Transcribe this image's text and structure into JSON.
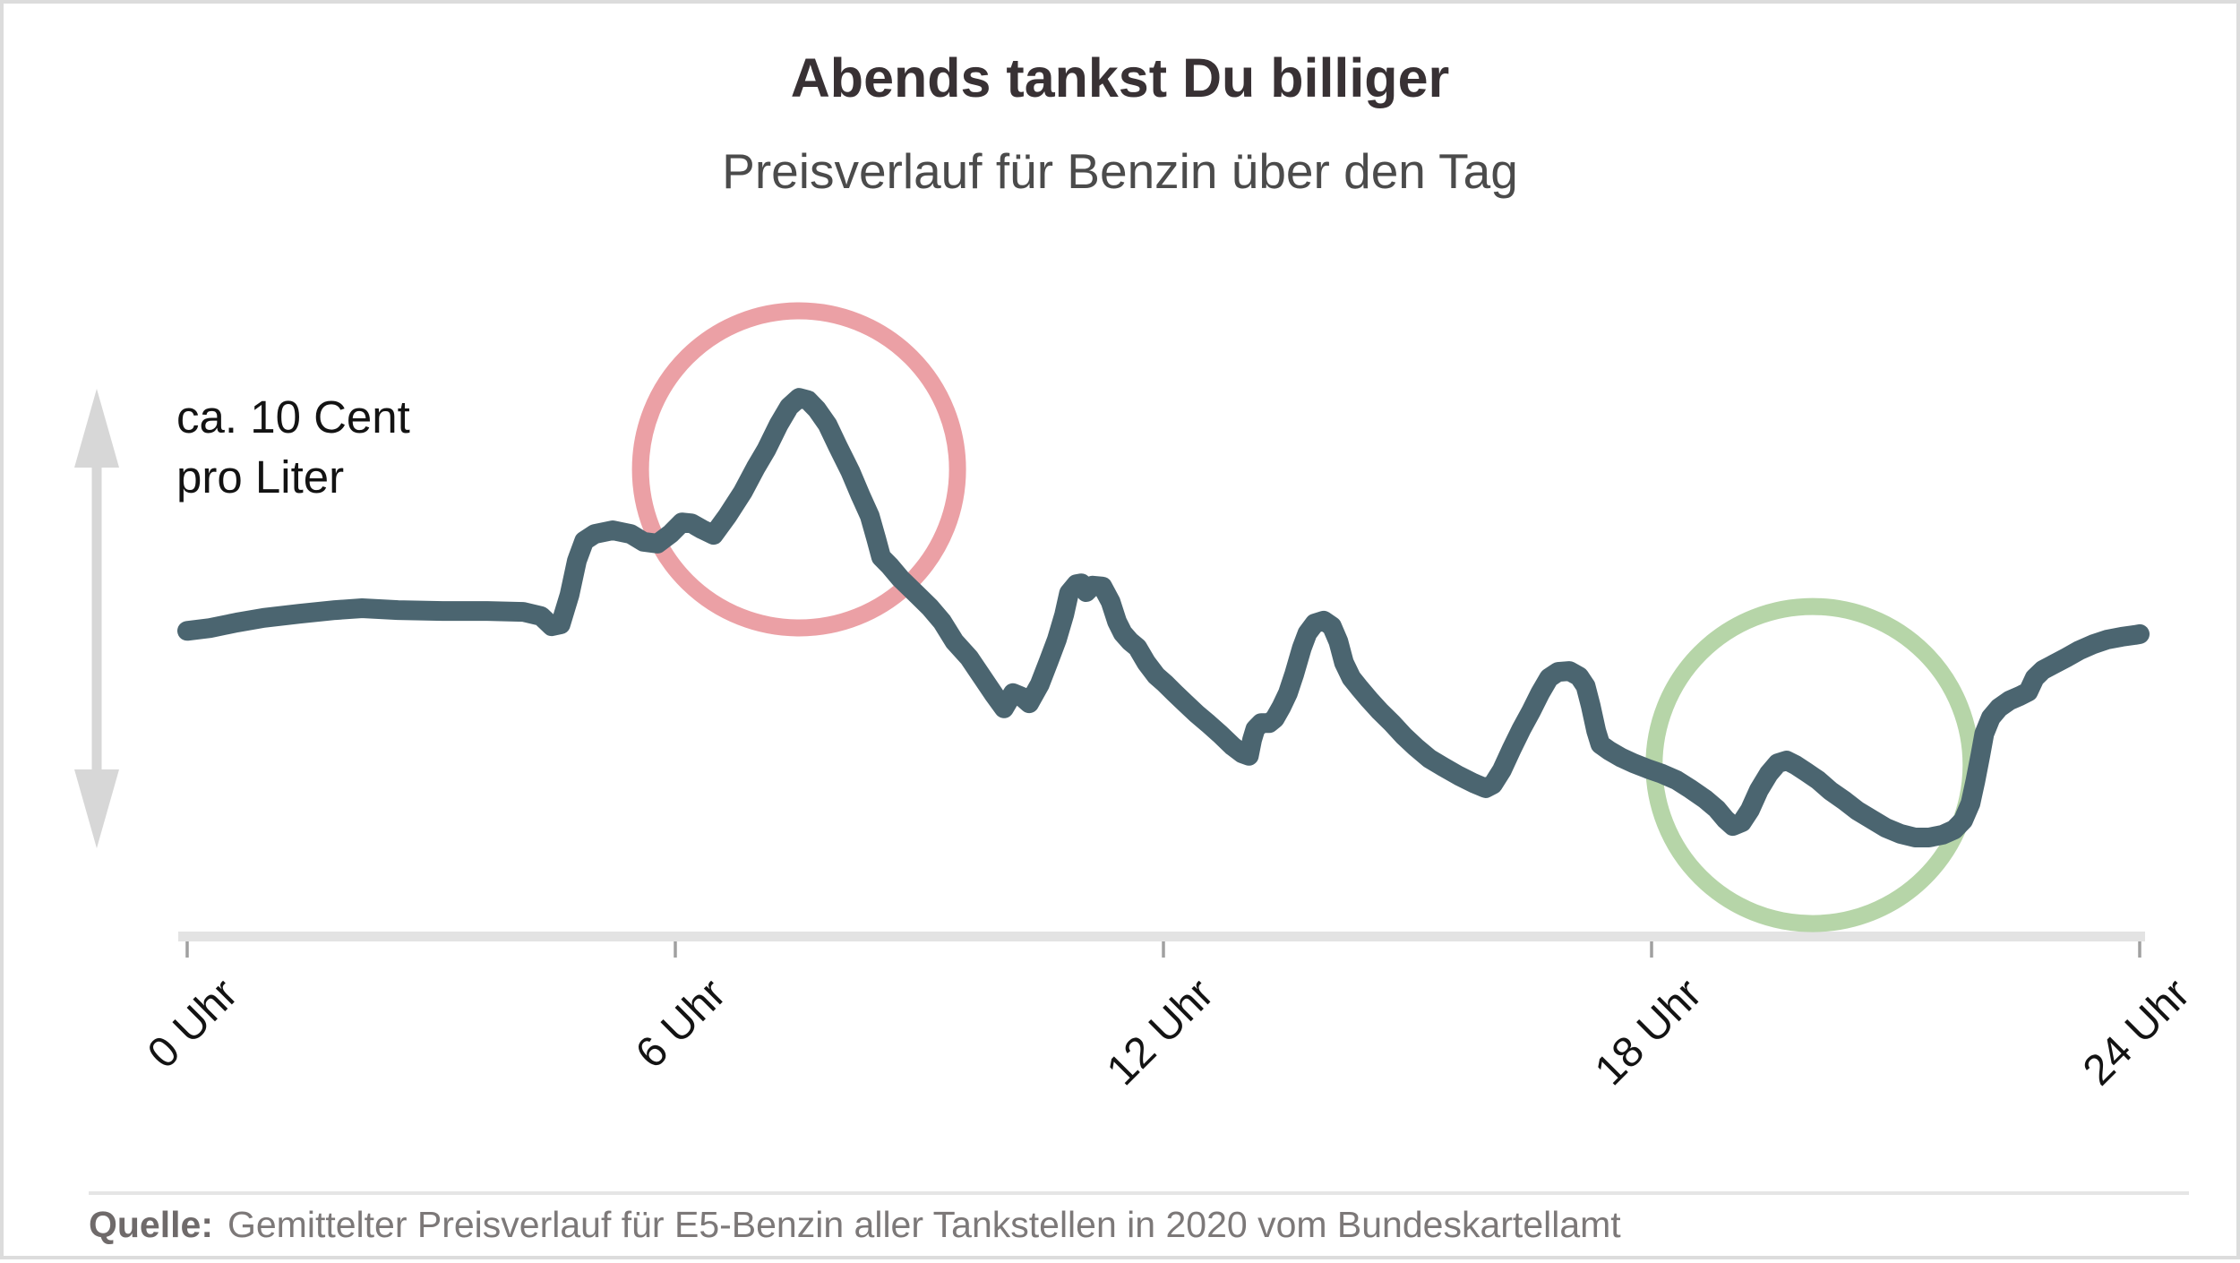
{
  "header": {
    "title": "Abends tankst Du billiger",
    "subtitle": "Preisverlauf für Benzin über den Tag"
  },
  "annotation": {
    "line1": "ca. 10 Cent",
    "line2": "pro Liter"
  },
  "source": {
    "label": "Quelle:",
    "text": "Gemittelter Preisverlauf für E5-Benzin aller Tankstellen in 2020 vom Bundeskartellamt"
  },
  "colors": {
    "line": "#4b6570",
    "circle-red": "#eba0a5",
    "circle-green": "#b6d5a8",
    "arrow": "#d7d7d7",
    "axis-bar": "#e3e3e3",
    "axis-tick": "#a0a0a0",
    "title": "#383134",
    "subtitle": "#4b4b4b",
    "source": "#7c7878"
  },
  "chart_data": {
    "type": "line",
    "title": "Abends tankst Du billiger",
    "subtitle": "Preisverlauf für Benzin über den Tag",
    "xlabel": "",
    "ylabel": "",
    "grid": false,
    "legend": "none",
    "x_unit": "hour_of_day",
    "y_unit": "cents_per_liter_above_daily_low",
    "x_range_hours": [
      0,
      24
    ],
    "y_range_cents": [
      0,
      10
    ],
    "scale_note": "ca. 10 Cent pro Liter",
    "ticks": [
      {
        "label": "0 Uhr",
        "hour": 0
      },
      {
        "label": "6 Uhr",
        "hour": 6
      },
      {
        "label": "12 Uhr",
        "hour": 12
      },
      {
        "label": "18 Uhr",
        "hour": 18
      },
      {
        "label": "24 Uhr",
        "hour": 24
      }
    ],
    "series_name": "Gemittelter E5-Benzinpreis 2020",
    "series": [
      [
        0,
        4.5
      ],
      [
        0.28,
        4.56
      ],
      [
        0.61,
        4.68
      ],
      [
        0.94,
        4.78
      ],
      [
        1.38,
        4.87
      ],
      [
        1.82,
        4.95
      ],
      [
        2.15,
        4.99
      ],
      [
        2.59,
        4.95
      ],
      [
        3.14,
        4.93
      ],
      [
        3.69,
        4.93
      ],
      [
        4.13,
        4.91
      ],
      [
        4.35,
        4.82
      ],
      [
        4.48,
        4.6
      ],
      [
        4.59,
        4.64
      ],
      [
        4.7,
        5.28
      ],
      [
        4.79,
        6.02
      ],
      [
        4.88,
        6.45
      ],
      [
        5.01,
        6.6
      ],
      [
        5.23,
        6.68
      ],
      [
        5.45,
        6.6
      ],
      [
        5.61,
        6.43
      ],
      [
        5.78,
        6.39
      ],
      [
        5.94,
        6.6
      ],
      [
        6.08,
        6.85
      ],
      [
        6.2,
        6.83
      ],
      [
        6.33,
        6.7
      ],
      [
        6.47,
        6.58
      ],
      [
        6.64,
        6.99
      ],
      [
        6.83,
        7.51
      ],
      [
        6.99,
        8.04
      ],
      [
        7.12,
        8.43
      ],
      [
        7.27,
        8.97
      ],
      [
        7.4,
        9.36
      ],
      [
        7.52,
        9.55
      ],
      [
        7.63,
        9.5
      ],
      [
        7.74,
        9.3
      ],
      [
        7.87,
        8.97
      ],
      [
        8.0,
        8.49
      ],
      [
        8.15,
        7.96
      ],
      [
        8.28,
        7.42
      ],
      [
        8.39,
        6.99
      ],
      [
        8.47,
        6.49
      ],
      [
        8.53,
        6.1
      ],
      [
        8.64,
        5.9
      ],
      [
        8.77,
        5.63
      ],
      [
        8.95,
        5.32
      ],
      [
        9.13,
        5.01
      ],
      [
        9.28,
        4.7
      ],
      [
        9.43,
        4.27
      ],
      [
        9.61,
        3.92
      ],
      [
        9.76,
        3.53
      ],
      [
        9.92,
        3.11
      ],
      [
        10.04,
        2.82
      ],
      [
        10.15,
        3.15
      ],
      [
        10.26,
        3.07
      ],
      [
        10.35,
        2.93
      ],
      [
        10.48,
        3.34
      ],
      [
        10.59,
        3.84
      ],
      [
        10.69,
        4.31
      ],
      [
        10.78,
        4.85
      ],
      [
        10.84,
        5.32
      ],
      [
        10.93,
        5.51
      ],
      [
        10.99,
        5.53
      ],
      [
        11.05,
        5.34
      ],
      [
        11.13,
        5.48
      ],
      [
        11.25,
        5.46
      ],
      [
        11.35,
        5.13
      ],
      [
        11.43,
        4.7
      ],
      [
        11.5,
        4.45
      ],
      [
        11.59,
        4.27
      ],
      [
        11.68,
        4.14
      ],
      [
        11.79,
        3.81
      ],
      [
        11.91,
        3.53
      ],
      [
        12.02,
        3.36
      ],
      [
        12.14,
        3.15
      ],
      [
        12.27,
        2.93
      ],
      [
        12.41,
        2.7
      ],
      [
        12.55,
        2.49
      ],
      [
        12.69,
        2.27
      ],
      [
        12.85,
        2.0
      ],
      [
        12.97,
        1.84
      ],
      [
        13.05,
        1.79
      ],
      [
        13.09,
        2.14
      ],
      [
        13.13,
        2.37
      ],
      [
        13.2,
        2.5
      ],
      [
        13.3,
        2.5
      ],
      [
        13.37,
        2.6
      ],
      [
        13.45,
        2.85
      ],
      [
        13.53,
        3.15
      ],
      [
        13.61,
        3.57
      ],
      [
        13.7,
        4.12
      ],
      [
        13.77,
        4.45
      ],
      [
        13.86,
        4.66
      ],
      [
        13.97,
        4.72
      ],
      [
        14.07,
        4.6
      ],
      [
        14.15,
        4.27
      ],
      [
        14.22,
        3.81
      ],
      [
        14.31,
        3.48
      ],
      [
        14.41,
        3.26
      ],
      [
        14.53,
        3.01
      ],
      [
        14.66,
        2.76
      ],
      [
        14.81,
        2.5
      ],
      [
        14.95,
        2.23
      ],
      [
        15.1,
        1.98
      ],
      [
        15.27,
        1.73
      ],
      [
        15.44,
        1.55
      ],
      [
        15.63,
        1.36
      ],
      [
        15.81,
        1.2
      ],
      [
        15.96,
        1.09
      ],
      [
        16.05,
        1.17
      ],
      [
        16.16,
        1.48
      ],
      [
        16.28,
        1.94
      ],
      [
        16.4,
        2.37
      ],
      [
        16.52,
        2.76
      ],
      [
        16.63,
        3.15
      ],
      [
        16.74,
        3.48
      ],
      [
        16.85,
        3.61
      ],
      [
        16.99,
        3.63
      ],
      [
        17.11,
        3.51
      ],
      [
        17.19,
        3.3
      ],
      [
        17.25,
        2.89
      ],
      [
        17.32,
        2.33
      ],
      [
        17.37,
        2.04
      ],
      [
        17.48,
        1.9
      ],
      [
        17.63,
        1.75
      ],
      [
        17.78,
        1.63
      ],
      [
        17.95,
        1.51
      ],
      [
        18.13,
        1.4
      ],
      [
        18.31,
        1.26
      ],
      [
        18.48,
        1.07
      ],
      [
        18.66,
        0.85
      ],
      [
        18.8,
        0.64
      ],
      [
        18.91,
        0.41
      ],
      [
        19.0,
        0.27
      ],
      [
        19.11,
        0.35
      ],
      [
        19.21,
        0.62
      ],
      [
        19.32,
        1.05
      ],
      [
        19.44,
        1.4
      ],
      [
        19.55,
        1.63
      ],
      [
        19.66,
        1.69
      ],
      [
        19.77,
        1.59
      ],
      [
        19.9,
        1.44
      ],
      [
        20.05,
        1.26
      ],
      [
        20.2,
        1.03
      ],
      [
        20.37,
        0.82
      ],
      [
        20.53,
        0.6
      ],
      [
        20.71,
        0.41
      ],
      [
        20.88,
        0.23
      ],
      [
        21.06,
        0.1
      ],
      [
        21.24,
        0.02
      ],
      [
        21.41,
        0.02
      ],
      [
        21.58,
        0.08
      ],
      [
        21.72,
        0.19
      ],
      [
        21.83,
        0.39
      ],
      [
        21.92,
        0.76
      ],
      [
        21.98,
        1.24
      ],
      [
        22.04,
        1.79
      ],
      [
        22.09,
        2.27
      ],
      [
        22.17,
        2.62
      ],
      [
        22.27,
        2.83
      ],
      [
        22.4,
        2.99
      ],
      [
        22.53,
        3.09
      ],
      [
        22.63,
        3.18
      ],
      [
        22.71,
        3.48
      ],
      [
        22.81,
        3.65
      ],
      [
        22.94,
        3.77
      ],
      [
        23.1,
        3.92
      ],
      [
        23.26,
        4.08
      ],
      [
        23.43,
        4.21
      ],
      [
        23.6,
        4.31
      ],
      [
        23.78,
        4.37
      ],
      [
        23.94,
        4.41
      ],
      [
        24.0,
        4.43
      ]
    ],
    "annotations": [
      {
        "id": "morning-peak",
        "shape": "circle",
        "hour": 7.52,
        "cents": 8.0,
        "radius_px": 177,
        "color": "#eba0a5"
      },
      {
        "id": "evening-low",
        "shape": "circle",
        "hour": 19.98,
        "cents": 1.59,
        "radius_px": 177,
        "color": "#b6d5a8"
      }
    ]
  }
}
